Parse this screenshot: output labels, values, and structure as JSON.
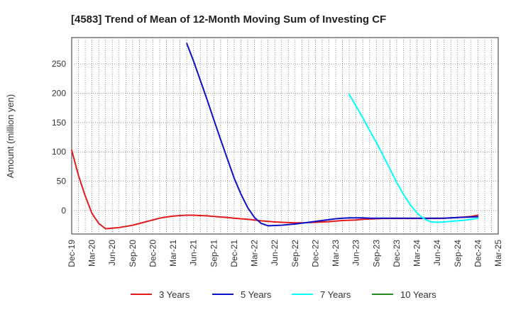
{
  "chart_data": {
    "type": "line",
    "title": "[4583]  Trend of Mean of 12-Month Moving Sum of Investing CF",
    "xlabel": "",
    "ylabel": "Amount (million yen)",
    "ylim": [
      -40,
      295
    ],
    "yticks": [
      0,
      50,
      100,
      150,
      200,
      250
    ],
    "x_tick_labels": [
      "Dec-19",
      "Mar-20",
      "Jun-20",
      "Sep-20",
      "Dec-20",
      "Mar-21",
      "Jun-21",
      "Sep-21",
      "Dec-21",
      "Mar-22",
      "Jun-22",
      "Sep-22",
      "Dec-22",
      "Mar-23",
      "Jun-23",
      "Sep-23",
      "Dec-23",
      "Mar-24",
      "Jun-24",
      "Sep-24",
      "Dec-24",
      "Mar-25"
    ],
    "grid": true,
    "legend_position": "bottom",
    "series": [
      {
        "name": "3 Years",
        "color": "#e31a1c",
        "points": [
          [
            "Dec-19",
            103
          ],
          [
            "Jan-20",
            60
          ],
          [
            "Feb-20",
            25
          ],
          [
            "Mar-20",
            -5
          ],
          [
            "Apr-20",
            -22
          ],
          [
            "May-20",
            -31
          ],
          [
            "Jun-20",
            -30
          ],
          [
            "Jul-20",
            -29
          ],
          [
            "Aug-20",
            -27
          ],
          [
            "Sep-20",
            -25
          ],
          [
            "Oct-20",
            -22
          ],
          [
            "Nov-20",
            -19
          ],
          [
            "Dec-20",
            -16
          ],
          [
            "Jan-21",
            -13
          ],
          [
            "Feb-21",
            -11
          ],
          [
            "Mar-21",
            -9.5
          ],
          [
            "Apr-21",
            -8.5
          ],
          [
            "May-21",
            -8
          ],
          [
            "Jun-21",
            -8
          ],
          [
            "Jul-21",
            -8.5
          ],
          [
            "Aug-21",
            -9
          ],
          [
            "Sep-21",
            -10
          ],
          [
            "Oct-21",
            -11
          ],
          [
            "Nov-21",
            -12
          ],
          [
            "Dec-21",
            -13
          ],
          [
            "Jan-22",
            -14
          ],
          [
            "Feb-22",
            -15
          ],
          [
            "Mar-22",
            -16
          ],
          [
            "Apr-22",
            -17.5
          ],
          [
            "May-22",
            -18.5
          ],
          [
            "Jun-22",
            -19.5
          ],
          [
            "Jul-22",
            -20
          ],
          [
            "Aug-22",
            -20.5
          ],
          [
            "Sep-22",
            -21
          ],
          [
            "Oct-22",
            -21
          ],
          [
            "Nov-22",
            -20.5
          ],
          [
            "Dec-22",
            -20
          ],
          [
            "Jan-23",
            -19.5
          ],
          [
            "Feb-23",
            -19
          ],
          [
            "Mar-23",
            -18
          ],
          [
            "Apr-23",
            -17
          ],
          [
            "May-23",
            -16.5
          ],
          [
            "Jun-23",
            -16
          ],
          [
            "Jul-23",
            -15
          ],
          [
            "Aug-23",
            -14.5
          ],
          [
            "Sep-23",
            -14
          ],
          [
            "Oct-23",
            -13.5
          ],
          [
            "Nov-23",
            -13.5
          ],
          [
            "Dec-23",
            -13.5
          ],
          [
            "Jan-24",
            -13.5
          ],
          [
            "Feb-24",
            -13.5
          ],
          [
            "Mar-24",
            -13.5
          ],
          [
            "Apr-24",
            -13.5
          ],
          [
            "May-24",
            -13.5
          ],
          [
            "Jun-24",
            -13.5
          ],
          [
            "Jul-24",
            -13
          ],
          [
            "Aug-24",
            -12.5
          ],
          [
            "Sep-24",
            -12
          ],
          [
            "Oct-24",
            -11
          ],
          [
            "Nov-24",
            -10
          ],
          [
            "Dec-24",
            -8
          ]
        ]
      },
      {
        "name": "5 Years",
        "color": "#0a10c8",
        "points": [
          [
            "May-21",
            285
          ],
          [
            "Jun-21",
            255
          ],
          [
            "Jul-21",
            222
          ],
          [
            "Aug-21",
            189
          ],
          [
            "Sep-21",
            155
          ],
          [
            "Oct-21",
            121
          ],
          [
            "Nov-21",
            88
          ],
          [
            "Dec-21",
            55
          ],
          [
            "Jan-22",
            28
          ],
          [
            "Feb-22",
            5
          ],
          [
            "Mar-22",
            -12
          ],
          [
            "Apr-22",
            -22
          ],
          [
            "May-22",
            -26
          ],
          [
            "Jun-22",
            -25.5
          ],
          [
            "Jul-22",
            -25
          ],
          [
            "Aug-22",
            -24
          ],
          [
            "Sep-22",
            -23
          ],
          [
            "Oct-22",
            -21.5
          ],
          [
            "Nov-22",
            -20
          ],
          [
            "Dec-22",
            -18.5
          ],
          [
            "Jan-23",
            -17
          ],
          [
            "Feb-23",
            -15.5
          ],
          [
            "Mar-23",
            -14
          ],
          [
            "Apr-23",
            -13
          ],
          [
            "May-23",
            -12.5
          ],
          [
            "Jun-23",
            -12.5
          ],
          [
            "Jul-23",
            -12.5
          ],
          [
            "Aug-23",
            -13
          ],
          [
            "Sep-23",
            -13
          ],
          [
            "Oct-23",
            -13
          ],
          [
            "Nov-23",
            -13
          ],
          [
            "Dec-23",
            -13
          ],
          [
            "Jan-24",
            -13
          ],
          [
            "Feb-24",
            -13
          ],
          [
            "Mar-24",
            -13
          ],
          [
            "Apr-24",
            -13
          ],
          [
            "May-24",
            -13
          ],
          [
            "Jun-24",
            -13
          ],
          [
            "Jul-24",
            -13
          ],
          [
            "Aug-24",
            -12.5
          ],
          [
            "Sep-24",
            -12
          ],
          [
            "Oct-24",
            -11.5
          ],
          [
            "Nov-24",
            -11
          ],
          [
            "Dec-24",
            -10.5
          ]
        ]
      },
      {
        "name": "7 Years",
        "color": "#00ffff",
        "points": [
          [
            "May-23",
            198
          ],
          [
            "Jun-23",
            178
          ],
          [
            "Jul-23",
            158
          ],
          [
            "Aug-23",
            137
          ],
          [
            "Sep-23",
            116
          ],
          [
            "Oct-23",
            94
          ],
          [
            "Nov-23",
            71
          ],
          [
            "Dec-23",
            48
          ],
          [
            "Jan-24",
            28
          ],
          [
            "Feb-24",
            10
          ],
          [
            "Mar-24",
            -4
          ],
          [
            "Apr-24",
            -14
          ],
          [
            "May-24",
            -19
          ],
          [
            "Jun-24",
            -20
          ],
          [
            "Jul-24",
            -19.5
          ],
          [
            "Aug-24",
            -18.5
          ],
          [
            "Sep-24",
            -17.5
          ],
          [
            "Oct-24",
            -16.5
          ],
          [
            "Nov-24",
            -15
          ],
          [
            "Dec-24",
            -13
          ]
        ]
      },
      {
        "name": "10 Years",
        "color": "#228b22",
        "points": []
      }
    ]
  }
}
